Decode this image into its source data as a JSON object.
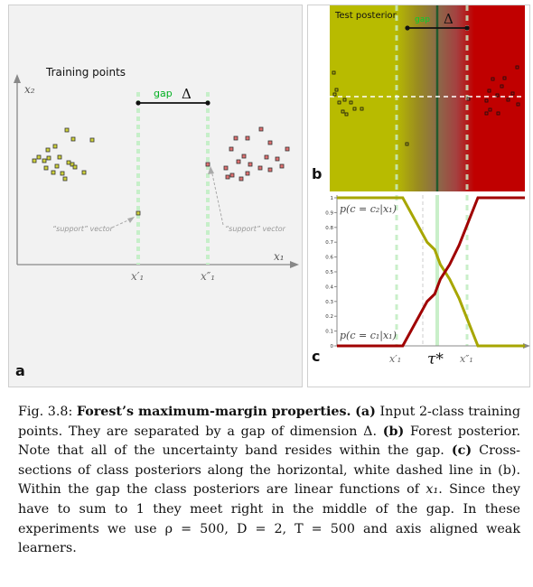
{
  "panel_a": {
    "title": "Training points",
    "gap_label": "gap",
    "delta": "Δ",
    "y_axis": "x₂",
    "x_axis": "x₁",
    "tick_left": "x′₁",
    "tick_right": "x″₁",
    "support_left": "“support” vector",
    "support_right": "“support” vector",
    "letter": "a",
    "colors": {
      "class2": "#b5be00",
      "class1": "#c00000",
      "gap": "#00c020"
    }
  },
  "panel_b": {
    "title": "Test posterior",
    "gap_label": "gap",
    "delta": "Δ",
    "letter": "b"
  },
  "panel_c": {
    "letter": "c",
    "label_top": "p(c = c₂|x₁)",
    "label_bottom": "p(c = c₁|x₁)",
    "tick_left": "x′₁",
    "tick_mid": "τ*",
    "tick_right": "x″₁"
  },
  "chart_data": {
    "type": "line",
    "xlabel": "",
    "ylabel": "",
    "ylim": [
      0,
      1
    ],
    "yticks": [
      "0",
      "0.1",
      "0.2",
      "0.3",
      "0.4",
      "0.5",
      "0.6",
      "0.7",
      "0.8",
      "0.9",
      "1"
    ],
    "x": [
      0,
      0.35,
      0.48,
      0.52,
      0.55,
      0.6,
      0.65,
      0.7,
      0.75,
      1
    ],
    "series": [
      {
        "name": "p(c = c₂|x₁)",
        "color": "#a7a600",
        "values": [
          1,
          1,
          0.7,
          0.65,
          0.55,
          0.45,
          0.32,
          0.16,
          0,
          0
        ]
      },
      {
        "name": "p(c = c₁|x₁)",
        "color": "#a00000",
        "values": [
          0,
          0,
          0.3,
          0.35,
          0.45,
          0.55,
          0.68,
          0.84,
          1,
          1
        ]
      }
    ]
  },
  "caption": {
    "fig": "Fig. 3.8:",
    "title": "Forest’s maximum-margin properties.",
    "s1_label": "(a)",
    "s1": "Input 2-class training points. They are separated by a gap of dimension Δ.",
    "s2_label": "(b)",
    "s2": "Forest posterior. Note that all of the uncertainty band resides within the gap.",
    "s3_label": "(c)",
    "s3": "Cross-sections of class posteriors along the horizontal, white dashed line in (b). Within the gap the class posteriors are linear functions of",
    "s3_var": "x₁",
    "s3b": ". Since they have to sum to 1 they meet right in the middle of the gap. In these experiments we use ρ = 500, D = 2, T = 500 and axis aligned weak learners."
  }
}
